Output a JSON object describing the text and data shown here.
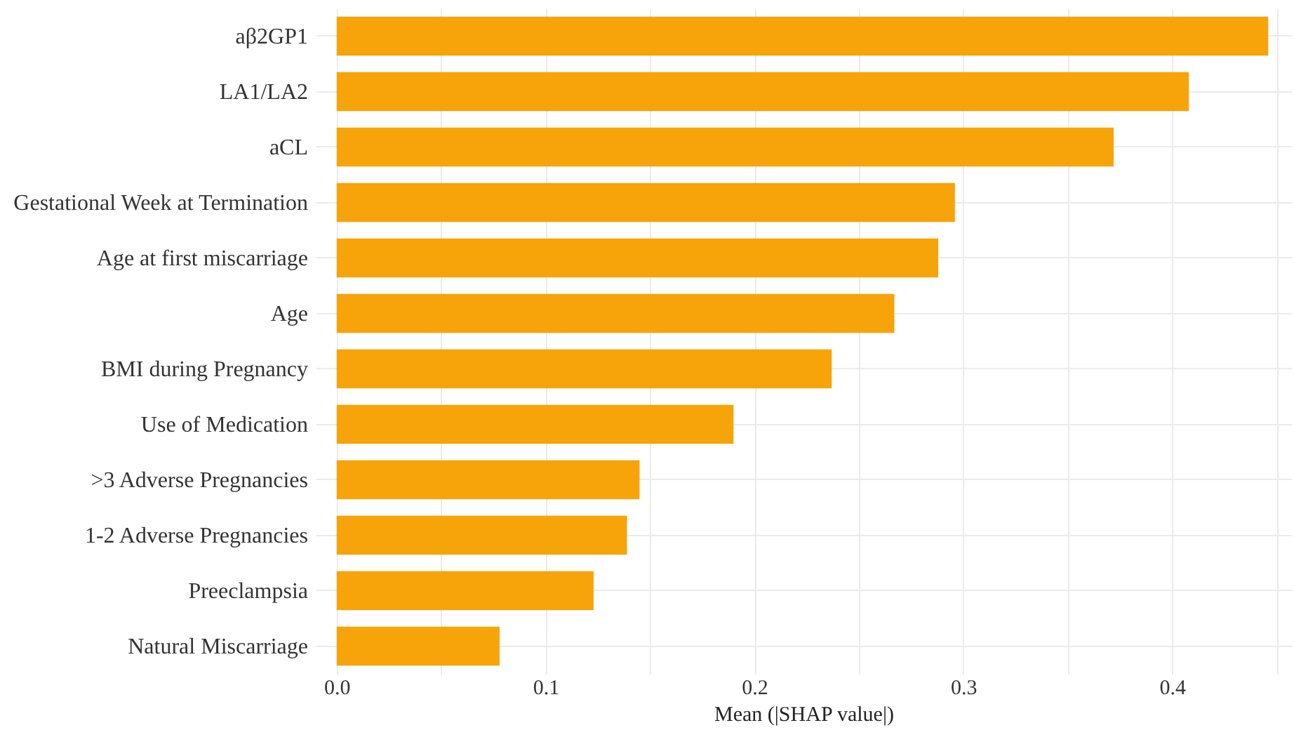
{
  "chart_data": {
    "type": "bar",
    "orientation": "horizontal",
    "xlabel": "Mean (|SHAP value|)",
    "categories": [
      "aβ2GP1",
      "LA1/LA2",
      "aCL",
      "Gestational Week at Termination",
      "Age at first miscarriage",
      "Age",
      "BMI during Pregnancy",
      "Use of Medication",
      ">3 Adverse Pregnancies",
      "1-2 Adverse Pregnancies",
      "Preeclampsia",
      "Natural Miscarriage"
    ],
    "values": [
      0.446,
      0.408,
      0.372,
      0.296,
      0.288,
      0.267,
      0.237,
      0.19,
      0.145,
      0.139,
      0.123,
      0.078
    ],
    "color": "#f7a30a",
    "xlim": [
      -0.01,
      0.457
    ],
    "xticks": [
      {
        "value": 0,
        "label": "0.0"
      },
      {
        "value": 0.05,
        "label": null
      },
      0.1,
      {
        "value": 0.15,
        "label": null
      },
      0.2,
      {
        "value": 0.25,
        "label": null
      },
      0.3,
      {
        "value": 0.35,
        "label": null
      },
      0.4,
      {
        "value": 0.45,
        "label": null
      }
    ],
    "grid": true
  }
}
